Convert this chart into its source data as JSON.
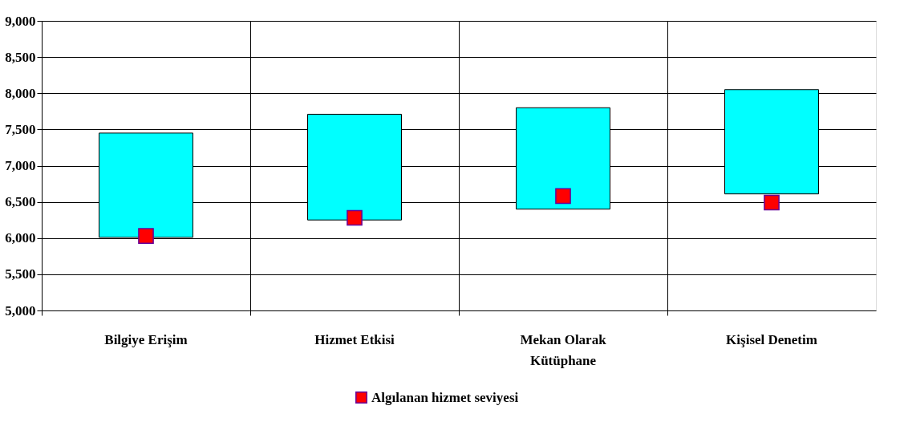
{
  "chart_data": {
    "type": "bar",
    "categories": [
      "Bilgiye Erişim",
      "Hizmet Etkisi",
      "Mekan Olarak Kütüphane",
      "Kişisel Denetim"
    ],
    "series": [
      {
        "color": "#00ffff",
        "base": [
          6010,
          6250,
          6400,
          6610
        ],
        "values": [
          1440,
          1460,
          1400,
          1440
        ]
      },
      {
        "type": "scatter",
        "name": "Algılanan hizmet seviyesi",
        "color": "#ff0000",
        "marker": "square",
        "values": [
          6030,
          6280,
          6580,
          6490
        ]
      }
    ],
    "ylim": [
      5000,
      9000
    ],
    "yticks": [
      {
        "value": 5000,
        "label": "5,000"
      },
      {
        "value": 5500,
        "label": "5,500"
      },
      {
        "value": 6000,
        "label": "6,000"
      },
      {
        "value": 6500,
        "label": "6,500"
      },
      {
        "value": 7000,
        "label": "7,000"
      },
      {
        "value": 7500,
        "label": "7,500"
      },
      {
        "value": 8000,
        "label": "8,000"
      },
      {
        "value": 8500,
        "label": "8,500"
      },
      {
        "value": 9000,
        "label": "9,000"
      }
    ],
    "grid": true,
    "legend": "bottom"
  }
}
